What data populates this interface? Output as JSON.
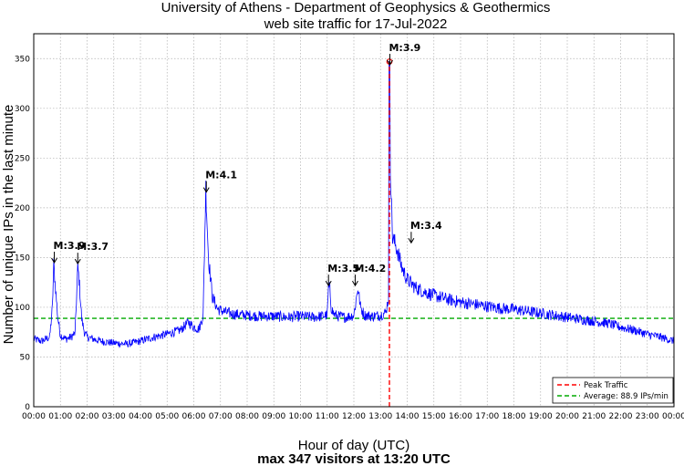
{
  "chart_data": {
    "type": "line",
    "title": "University of Athens - Department of Geophysics & Geothermics",
    "subtitle": "web site traffic for 17-Jul-2022",
    "xlabel": "Hour of day (UTC)",
    "ylabel": "Number of unique IPs in the last minute",
    "footer": "max 347 visitors at 13:20 UTC",
    "xlim_hours": [
      0,
      24
    ],
    "ylim": [
      0,
      375
    ],
    "grid": true,
    "x_ticks": [
      "00:00",
      "01:00",
      "02:00",
      "03:00",
      "04:00",
      "05:00",
      "06:00",
      "07:00",
      "08:00",
      "09:00",
      "10:00",
      "11:00",
      "12:00",
      "13:00",
      "14:00",
      "15:00",
      "16:00",
      "17:00",
      "18:00",
      "19:00",
      "20:00",
      "21:00",
      "22:00",
      "23:00",
      "00:00"
    ],
    "y_ticks": [
      0,
      50,
      100,
      150,
      200,
      250,
      300,
      350
    ],
    "series": [
      {
        "name": "Traffic",
        "color": "#0000ff",
        "x_hours": [
          0,
          0.3,
          0.6,
          0.7,
          0.75,
          0.8,
          0.9,
          1.0,
          1.2,
          1.4,
          1.55,
          1.65,
          1.7,
          1.8,
          1.9,
          2.0,
          2.5,
          3.0,
          3.5,
          4.0,
          4.5,
          5.0,
          5.5,
          5.8,
          6.0,
          6.2,
          6.35,
          6.45,
          6.55,
          6.7,
          6.9,
          7.2,
          7.5,
          8.0,
          8.5,
          9.0,
          9.5,
          10.0,
          10.5,
          11.0,
          11.05,
          11.1,
          11.15,
          11.25,
          11.4,
          11.7,
          12.0,
          12.1,
          12.15,
          12.25,
          12.4,
          12.7,
          13.0,
          13.2,
          13.3,
          13.33,
          13.36,
          13.45,
          13.6,
          13.8,
          14.0,
          14.3,
          14.6,
          15.0,
          15.5,
          16.0,
          16.5,
          17.0,
          17.5,
          18.0,
          18.5,
          19.0,
          19.5,
          20.0,
          20.5,
          21.0,
          21.5,
          22.0,
          22.5,
          23.0,
          23.5,
          24.0
        ],
        "values": [
          68,
          66,
          70,
          100,
          143,
          125,
          90,
          72,
          68,
          70,
          74,
          140,
          128,
          88,
          75,
          70,
          66,
          64,
          63,
          66,
          70,
          73,
          77,
          85,
          80,
          78,
          92,
          220,
          150,
          110,
          98,
          95,
          93,
          92,
          91,
          91,
          90,
          91,
          90,
          92,
          120,
          118,
          100,
          93,
          91,
          90,
          92,
          110,
          120,
          100,
          92,
          91,
          92,
          95,
          110,
          347,
          250,
          170,
          160,
          140,
          128,
          120,
          116,
          112,
          108,
          105,
          103,
          101,
          99,
          98,
          96,
          94,
          92,
          90,
          88,
          86,
          84,
          80,
          77,
          73,
          70,
          66
        ]
      }
    ],
    "peak": {
      "time_hours": 13.333,
      "value": 347,
      "label": "Peak Traffic",
      "color": "#ff0000"
    },
    "average": {
      "value": 88.9,
      "label": "Average: 88.9 IPs/min",
      "color": "#00aa00"
    },
    "earthquake_annotations": [
      {
        "label": "M:3.9",
        "time_hours": 0.77,
        "value": 143
      },
      {
        "label": "M:3.7",
        "time_hours": 1.65,
        "value": 142
      },
      {
        "label": "M:4.1",
        "time_hours": 6.47,
        "value": 214
      },
      {
        "label": "M:3.5",
        "time_hours": 11.05,
        "value": 120
      },
      {
        "label": "M:4.2",
        "time_hours": 12.05,
        "value": 120
      },
      {
        "label": "M:3.9",
        "time_hours": 13.35,
        "value": 342
      },
      {
        "label": "M:3.4",
        "time_hours": 14.15,
        "value": 163
      }
    ],
    "legend": {
      "placement": "bottom-right",
      "entries": [
        "Peak Traffic",
        "Average: 88.9 IPs/min"
      ]
    }
  }
}
